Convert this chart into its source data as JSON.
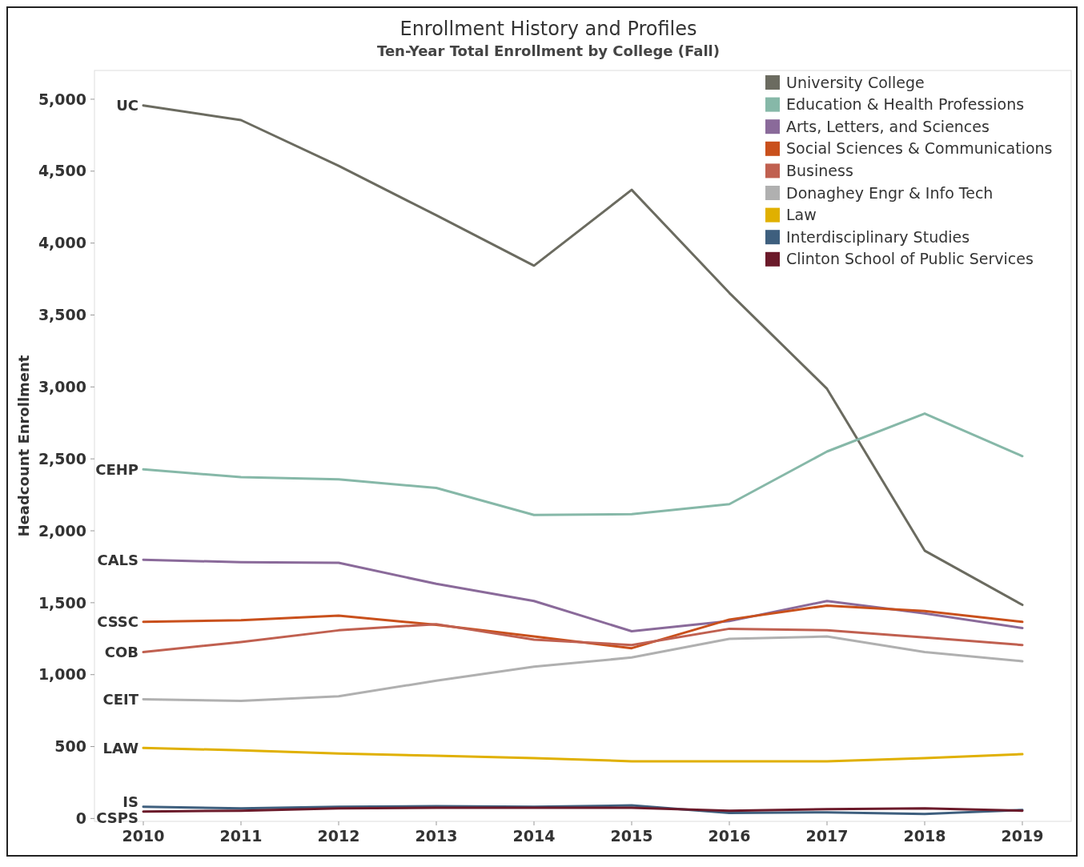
{
  "chart_data": {
    "type": "line",
    "title": "Enrollment History and Profiles",
    "subtitle": "Ten-Year Total Enrollment by College (Fall)",
    "ylabel": "Headcount Enrollment",
    "x": [
      2010,
      2011,
      2012,
      2013,
      2014,
      2015,
      2016,
      2017,
      2018,
      2019
    ],
    "xlim": [
      2009.5,
      2019.5
    ],
    "xticks": [
      2010,
      2011,
      2012,
      2013,
      2014,
      2015,
      2016,
      2017,
      2018,
      2019
    ],
    "ylim": [
      -20,
      5200
    ],
    "yticks": [
      {
        "value": 0,
        "label": "0"
      },
      {
        "value": 500,
        "label": "500"
      },
      {
        "value": 1000,
        "label": "1,000"
      },
      {
        "value": 1500,
        "label": "1,500"
      },
      {
        "value": 2000,
        "label": "2,000"
      },
      {
        "value": 2500,
        "label": "2,500"
      },
      {
        "value": 3000,
        "label": "3,000"
      },
      {
        "value": 3500,
        "label": "3,500"
      },
      {
        "value": 4000,
        "label": "4,000"
      },
      {
        "value": 4500,
        "label": "4,500"
      },
      {
        "value": 5000,
        "label": "5,000"
      }
    ],
    "grid": false,
    "legend": "top right",
    "marker": "none",
    "line_style": "solid",
    "series": [
      {
        "name": "University College",
        "color": "#6b6b60",
        "values": [
          4957,
          4855,
          4537,
          4193,
          3843,
          4370,
          3654,
          2987,
          1862,
          1485
        ]
      },
      {
        "name": "Education & Health Professions",
        "color": "#86b8a8",
        "values": [
          2427,
          2373,
          2357,
          2298,
          2110,
          2115,
          2185,
          2551,
          2815,
          2519
        ]
      },
      {
        "name": "Arts, Letters, and Sciences",
        "color": "#8a6a9a",
        "values": [
          1798,
          1782,
          1777,
          1631,
          1512,
          1302,
          1372,
          1512,
          1426,
          1324
        ]
      },
      {
        "name": "Social Sciences & Communications",
        "color": "#c9501c",
        "values": [
          1367,
          1378,
          1410,
          1346,
          1265,
          1184,
          1383,
          1480,
          1442,
          1367
        ]
      },
      {
        "name": "Business",
        "color": "#c06050",
        "values": [
          1157,
          1227,
          1308,
          1351,
          1243,
          1206,
          1319,
          1308,
          1259,
          1206
        ]
      },
      {
        "name": "Donaghey Engr & Info Tech",
        "color": "#b0b0b0",
        "values": [
          829,
          818,
          850,
          958,
          1055,
          1119,
          1249,
          1265,
          1157,
          1093
        ]
      },
      {
        "name": "Law",
        "color": "#e0b000",
        "values": [
          490,
          474,
          452,
          436,
          420,
          398,
          398,
          398,
          420,
          447
        ]
      },
      {
        "name": "Interdisciplinary Studies",
        "color": "#3e5f7e",
        "values": [
          81,
          70,
          81,
          86,
          81,
          91,
          38,
          43,
          32,
          59
        ]
      },
      {
        "name": "Clinton School of Public Services",
        "color": "#6b1a2a",
        "values": [
          48,
          54,
          70,
          75,
          75,
          75,
          54,
          65,
          70,
          54
        ]
      }
    ],
    "annotations": [
      "UC",
      "CEHP",
      "CALS",
      "CSSC",
      "COB",
      "CEIT",
      "LAW",
      "IS",
      "CSPS"
    ]
  }
}
